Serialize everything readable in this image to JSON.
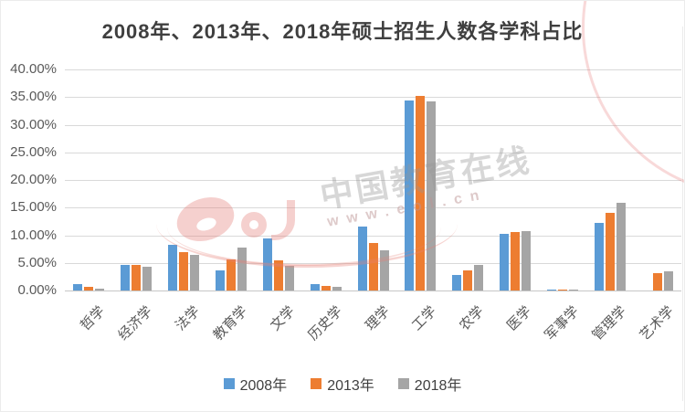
{
  "chart_data": {
    "type": "bar",
    "title": "2008年、2013年、2018年硕士招生人数各学科占比",
    "categories": [
      "哲学",
      "经济学",
      "法学",
      "教育学",
      "文学",
      "历史学",
      "理学",
      "工学",
      "农学",
      "医学",
      "军事学",
      "管理学",
      "艺术学"
    ],
    "series": [
      {
        "name": "2008年",
        "color": "#5B9BD5",
        "values": [
          1.1,
          4.7,
          8.2,
          3.7,
          9.4,
          1.1,
          11.5,
          34.4,
          2.8,
          10.3,
          0.1,
          12.3,
          0
        ]
      },
      {
        "name": "2013年",
        "color": "#ED7D31",
        "values": [
          0.6,
          4.6,
          7.0,
          5.7,
          5.4,
          0.8,
          8.6,
          35.2,
          3.7,
          10.6,
          0.1,
          14.1,
          3.2
        ]
      },
      {
        "name": "2018年",
        "color": "#A5A5A5",
        "values": [
          0.4,
          4.3,
          6.4,
          7.7,
          4.4,
          0.6,
          7.2,
          34.3,
          4.6,
          10.7,
          0.1,
          15.8,
          3.4
        ]
      }
    ],
    "ylabel": "",
    "xlabel": "",
    "ylim": [
      0,
      40
    ],
    "y_ticks": [
      "40.00%",
      "35.00%",
      "30.00%",
      "25.00%",
      "20.00%",
      "15.00%",
      "10.00%",
      "5.00%",
      "0.00%"
    ],
    "grid": true,
    "legend_position": "bottom"
  },
  "watermark": {
    "brand": "中国教育在线",
    "url": "www.eol.cn",
    "logo": "eol-logo"
  },
  "colors": {
    "grid": "#D9D9D9",
    "axis_text": "#595959",
    "title_text": "#3F3F3F",
    "background": "#FFFFFF"
  }
}
